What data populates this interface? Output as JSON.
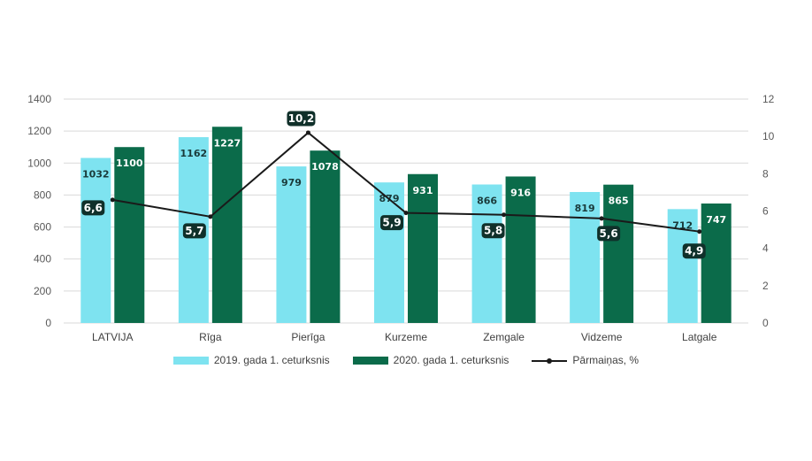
{
  "chart_data": {
    "type": "bar",
    "categories": [
      "LATVIJA",
      "Rīga",
      "Pierīga",
      "Kurzeme",
      "Zemgale",
      "Vidzeme",
      "Latgale"
    ],
    "series": [
      {
        "name": "2019. gada 1. ceturksnis",
        "type": "bar",
        "axis": "left",
        "color": "#7ee3f0",
        "values": [
          1032,
          1162,
          979,
          879,
          866,
          819,
          712
        ],
        "labels": [
          "1032",
          "1162",
          "979",
          "879",
          "866",
          "819",
          "712"
        ]
      },
      {
        "name": "2020. gada 1. ceturksnis",
        "type": "bar",
        "axis": "left",
        "color": "#0b6b4a",
        "values": [
          1100,
          1227,
          1078,
          931,
          916,
          865,
          747
        ],
        "labels": [
          "1100",
          "1227",
          "1078",
          "931",
          "916",
          "865",
          "747"
        ]
      },
      {
        "name": "Pārmaiņas, %",
        "type": "line",
        "axis": "right",
        "color": "#1a1a1a",
        "values": [
          6.6,
          5.7,
          10.2,
          5.9,
          5.8,
          5.6,
          4.9
        ],
        "labels": [
          "6,6",
          "5,7",
          "10,2",
          "5,9",
          "5,8",
          "5,6",
          "4,9"
        ]
      }
    ],
    "y_left": {
      "min": 0,
      "max": 1400,
      "ticks": [
        "0",
        "200",
        "400",
        "600",
        "800",
        "1000",
        "1200",
        "1400"
      ]
    },
    "y_right": {
      "min": 0,
      "max": 12,
      "ticks": [
        "0",
        "2",
        "4",
        "6",
        "8",
        "10",
        "12"
      ]
    },
    "grid": true,
    "legend_position": "bottom"
  },
  "legend": {
    "item1": "2019. gada 1. ceturksnis",
    "item2": "2020. gada 1. ceturksnis",
    "item3": "Pārmaiņas, %"
  },
  "colors": {
    "series_2019": "#7ee3f0",
    "series_2020": "#0b6b4a",
    "line": "#1a1a1a",
    "point_label_bg": "#10302a",
    "grid": "#d9d9d9"
  }
}
